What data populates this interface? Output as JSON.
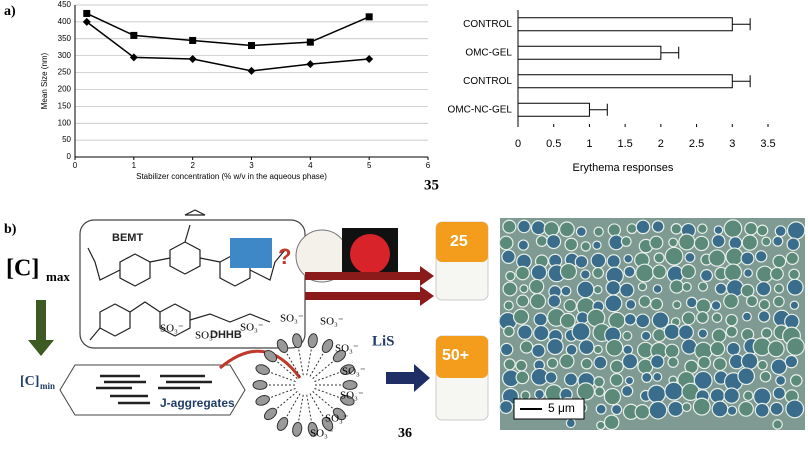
{
  "panel_a": {
    "label": "a)",
    "number": "35"
  },
  "chart_data": [
    {
      "type": "line",
      "xlabel": "Stabilizer concentration (% w/v in the aqueous phase)",
      "ylabel": "Mean Size (nm)",
      "x": [
        0.2,
        1,
        2,
        3,
        4,
        5
      ],
      "series": [
        {
          "marker": "square",
          "color": "#000000",
          "values": [
            425,
            360,
            345,
            330,
            340,
            415
          ]
        },
        {
          "marker": "diamond",
          "color": "#000000",
          "values": [
            400,
            295,
            290,
            255,
            275,
            290
          ]
        }
      ],
      "xlim": [
        0,
        6
      ],
      "xticks": [
        0,
        1,
        2,
        3,
        4,
        5,
        6
      ],
      "ylim": [
        0,
        450
      ],
      "yticks": [
        0,
        50,
        100,
        150,
        200,
        250,
        300,
        350,
        400,
        450
      ],
      "grid": true
    },
    {
      "type": "bar",
      "orientation": "horizontal",
      "xlabel": "Erythema responses",
      "categories": [
        "CONTROL",
        "OMC-GEL",
        "CONTROL",
        "OMC-NC-GEL"
      ],
      "values": [
        3,
        2,
        3,
        1
      ],
      "errors": [
        0.25,
        0.25,
        0.25,
        0.25
      ],
      "color": "#ffffff",
      "xlim": [
        0,
        3.5
      ],
      "xticks": [
        0,
        0.5,
        1,
        1.5,
        2,
        2.5,
        3,
        3.5
      ]
    }
  ],
  "panel_b": {
    "label": "b)",
    "c_max": "[C]",
    "c_max_sub": "max",
    "c_min": "[C]",
    "c_min_sub": "min",
    "bemt": "BEMT",
    "dhhb": "DHHB",
    "question": "?",
    "spf_25": "25",
    "spf_50": "50+",
    "j_aggregates": "J-aggregates",
    "lis": "LiS",
    "sulfonates": [
      "SO₃⁻",
      "SO₃⁻",
      "SO₃⁻",
      "SO₃⁻",
      "SO₃⁻",
      "SO₃⁻",
      "SO₃⁻",
      "SO₃⁻",
      "SO₃⁻",
      "SO₃⁻"
    ],
    "scale_bar": "5 μm",
    "number": "36"
  }
}
